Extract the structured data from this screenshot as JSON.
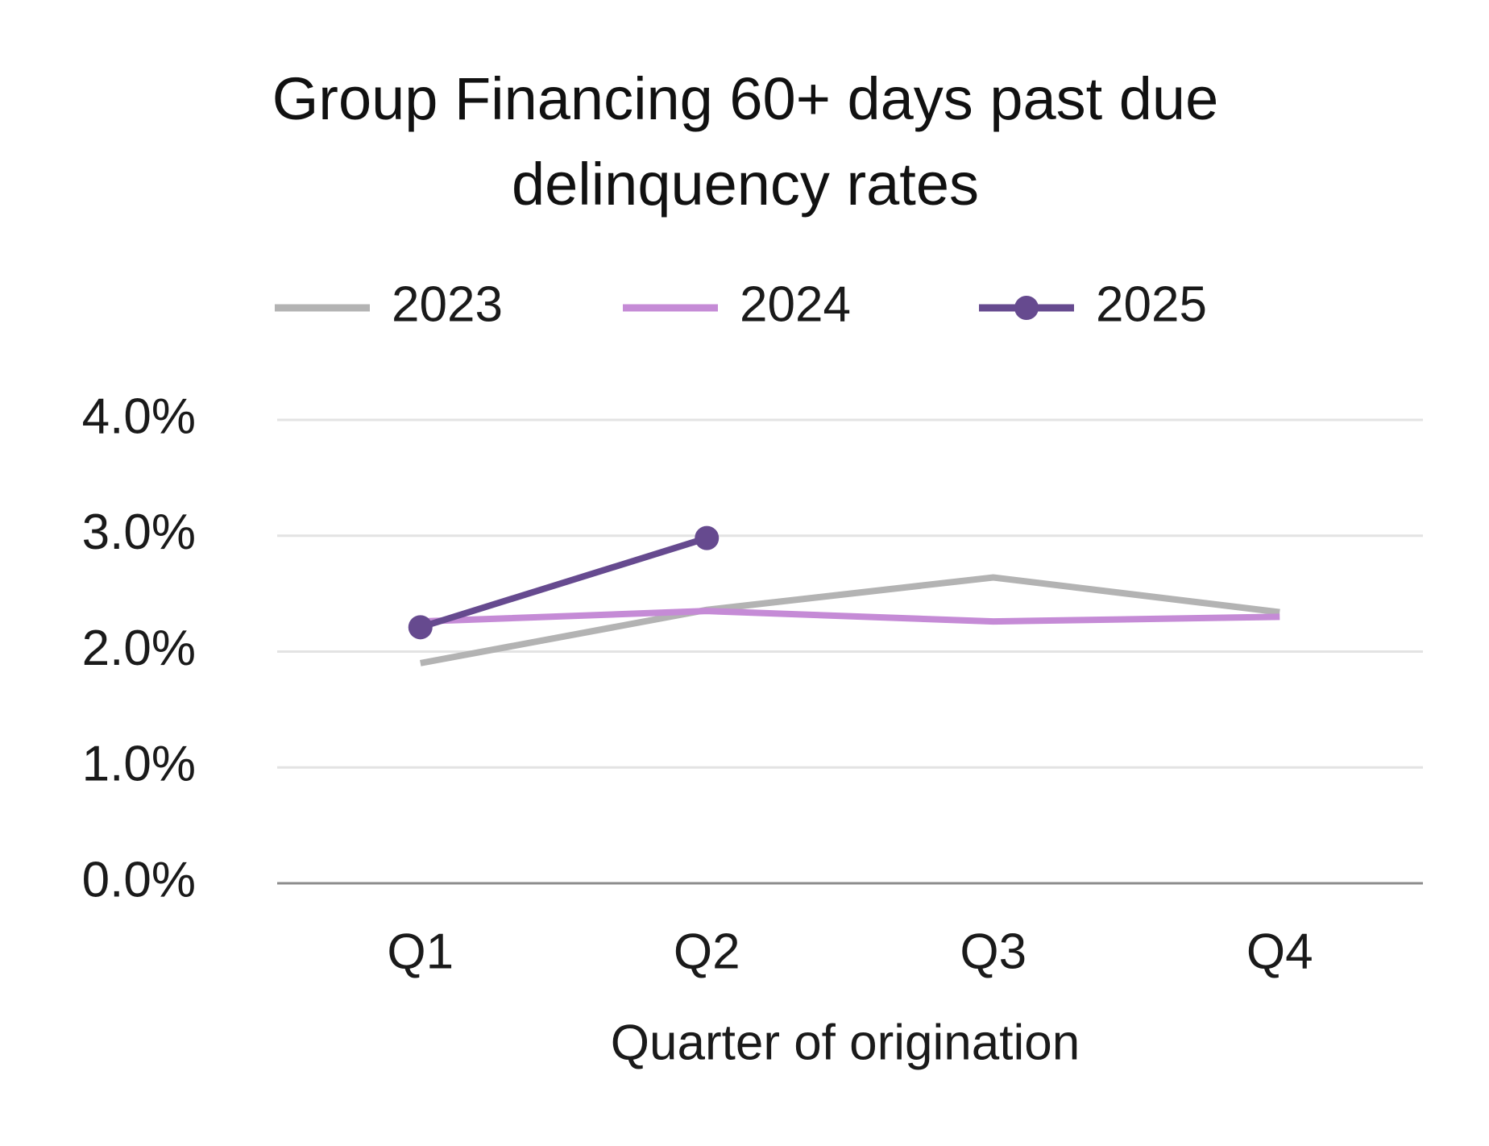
{
  "chart_data": {
    "type": "line",
    "title": "Group Financing 60+ days past due delinquency rates",
    "x_label": "Quarter of origination",
    "categories": [
      "Q1",
      "Q2",
      "Q3",
      "Q4"
    ],
    "series": [
      {
        "name": "2023",
        "color": "#b3b3b3",
        "marker": "none",
        "values": [
          1.9,
          2.36,
          2.64,
          2.34
        ]
      },
      {
        "name": "2024",
        "color": "#c58bd6",
        "marker": "none",
        "values": [
          2.26,
          2.35,
          2.26,
          2.3
        ]
      },
      {
        "name": "2025",
        "color": "#664a8f",
        "marker": "circle",
        "values": [
          2.21,
          2.98,
          null,
          null
        ]
      }
    ],
    "ylim": [
      0,
      4
    ],
    "yticks": [
      {
        "value": 0,
        "label": "0.0%"
      },
      {
        "value": 1,
        "label": "1.0%"
      },
      {
        "value": 2,
        "label": "2.0%"
      },
      {
        "value": 3,
        "label": "3.0%"
      },
      {
        "value": 4,
        "label": "4.0%"
      }
    ],
    "grid": true,
    "legend": "top"
  }
}
